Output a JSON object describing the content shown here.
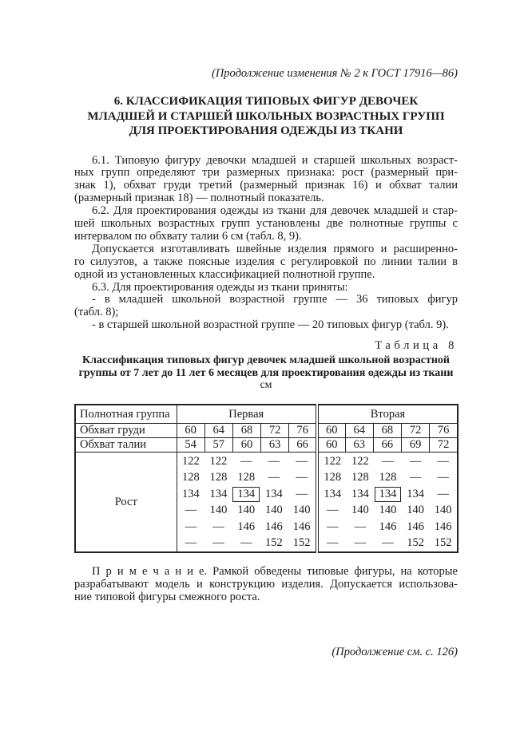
{
  "page": {
    "header_note": "(Продолжение изменения № 2 к ГОСТ 17916—86)",
    "footer_note": "(Продолжение см. с. 126)"
  },
  "section": {
    "title_lines": [
      "6. КЛАССИФИКАЦИЯ ТИПОВЫХ ФИГУР ДЕВОЧЕК",
      "МЛАДШЕЙ И СТАРШЕЙ ШКОЛЬНЫХ ВОЗРАСТНЫХ ГРУПП",
      "ДЛЯ ПРОЕКТИРОВАНИЯ ОДЕЖДЫ ИЗ ТКАНИ"
    ]
  },
  "paragraphs": [
    {
      "name": "paragraph-6-1",
      "lines": [
        "6.1. Типовую фигуру девочки младшей и старшей школьных возраст-",
        "ных групп определяют три размерных признака: рост (размерный при-",
        "знак 1), обхват груди третий (размерный признак 16) и обхват талии",
        "(размерный признак 18) — полнотный показатель."
      ]
    },
    {
      "name": "paragraph-6-2",
      "lines": [
        "6.2. Для проектирования одежды из ткани для девочек младшей и стар-",
        "шей школьных возрастных групп установлены две полнотные группы с",
        "интервалом по обхвату талии 6 см (табл. 8, 9)."
      ]
    },
    {
      "name": "paragraph-allowance",
      "lines": [
        "Допускается изготавливать швейные изделия прямого и расширенно-",
        "го силуэтов, а также поясные изделия с регулировкой по линии талии в",
        "одной из установленных классификацией полнотной группе."
      ]
    },
    {
      "name": "paragraph-6-3",
      "lines": [
        "6.3. Для проектирования одежды из ткани приняты:"
      ]
    },
    {
      "name": "paragraph-list-younger",
      "lines": [
        "- в младшей школьной возрастной группе — 36 типовых фигур",
        "(табл. 8);"
      ]
    },
    {
      "name": "paragraph-list-older",
      "lines": [
        "- в старшей школьной возрастной группе — 20 типовых фигур (табл. 9)."
      ]
    }
  ],
  "table": {
    "caption": "Таблица 8",
    "title_lines": [
      "Классификация типовых фигур девочек младшей школьной возрастной",
      "группы от 7 лет до 11 лет 6 месяцев для проектирования одежды из ткани"
    ],
    "unit": "см",
    "header": {
      "label": "Полнотная группа",
      "groups": [
        "Первая",
        "Вторая"
      ]
    },
    "rows": [
      {
        "label": "Обхват груди",
        "values": [
          [
            "60",
            "64",
            "68",
            "72",
            "76"
          ],
          [
            "60",
            "64",
            "68",
            "72",
            "76"
          ]
        ]
      },
      {
        "label": "Обхват талии",
        "values": [
          [
            "54",
            "57",
            "60",
            "63",
            "66"
          ],
          [
            "60",
            "63",
            "66",
            "69",
            "72"
          ]
        ]
      }
    ],
    "rost": {
      "label": "Рост",
      "lines": [
        [
          [
            "122",
            "122",
            "—",
            "—",
            "—"
          ],
          [
            "122",
            "122",
            "—",
            "—",
            "—"
          ]
        ],
        [
          [
            "128",
            "128",
            "128",
            "—",
            "—"
          ],
          [
            "128",
            "128",
            "128",
            "—",
            "—"
          ]
        ],
        [
          [
            "134",
            "134",
            "134",
            "134",
            "—"
          ],
          [
            "134",
            "134",
            "134",
            "134",
            "—"
          ]
        ],
        [
          [
            "—",
            "140",
            "140",
            "140",
            "140"
          ],
          [
            "—",
            "140",
            "140",
            "140",
            "140"
          ]
        ],
        [
          [
            "—",
            "—",
            "146",
            "146",
            "146"
          ],
          [
            "—",
            "—",
            "146",
            "146",
            "146"
          ]
        ],
        [
          [
            "—",
            "—",
            "—",
            "152",
            "152"
          ],
          [
            "—",
            "—",
            "—",
            "152",
            "152"
          ]
        ]
      ],
      "boxed_cells": [
        {
          "line": 2,
          "group": 0,
          "col": 2
        },
        {
          "line": 2,
          "group": 1,
          "col": 2
        }
      ]
    }
  },
  "note": {
    "lines": [
      "П р и м е ч а н и е. Рамкой обведены типовые фигуры, на которые",
      "разрабатывают модель и конструкцию изделия. Допускается использова-",
      "ние типовой фигуры смежного роста."
    ]
  },
  "colors": {
    "ink": "#1b1b1b",
    "border": "#222222",
    "paper": "#ffffff"
  }
}
